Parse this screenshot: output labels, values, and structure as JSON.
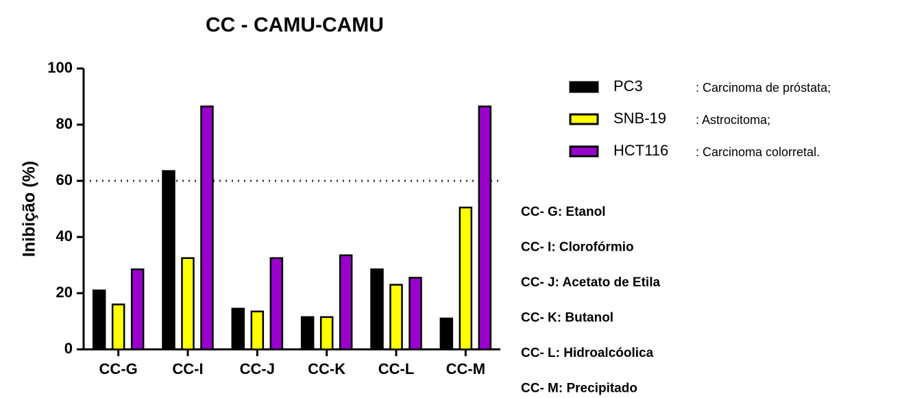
{
  "chart_data": {
    "type": "bar",
    "title": "CC - CAMU-CAMU",
    "y_label": "Inibição (%)",
    "categories": [
      "CC-G",
      "CC-I",
      "CC-J",
      "CC-K",
      "CC-L",
      "CC-M"
    ],
    "series": [
      {
        "name": "PC3",
        "description": ": Carcinoma de próstata;",
        "color": "#000000",
        "values": [
          21,
          63.5,
          14.5,
          11.5,
          28.5,
          11
        ]
      },
      {
        "name": "SNB-19",
        "description": ": Astrocitoma;",
        "color": "#ffff00",
        "values": [
          16,
          32.5,
          13.5,
          11.5,
          23,
          50.5
        ]
      },
      {
        "name": "HCT116",
        "description": ": Carcinoma colorretal.",
        "color": "#9900cc",
        "values": [
          28.5,
          86.5,
          32.5,
          33.5,
          25.5,
          86.5
        ]
      }
    ],
    "ylim": [
      0,
      100
    ],
    "yticks": [
      0,
      20,
      40,
      60,
      80,
      100
    ],
    "reference_line": 60,
    "notes": [
      "CC- G: Etanol",
      "CC- I: Clorofórmio",
      "CC- J:  Acetato de Etila",
      "CC- K: Butanol",
      "CC- L: Hidroalcóolica",
      "CC- M: Precipitado"
    ]
  }
}
